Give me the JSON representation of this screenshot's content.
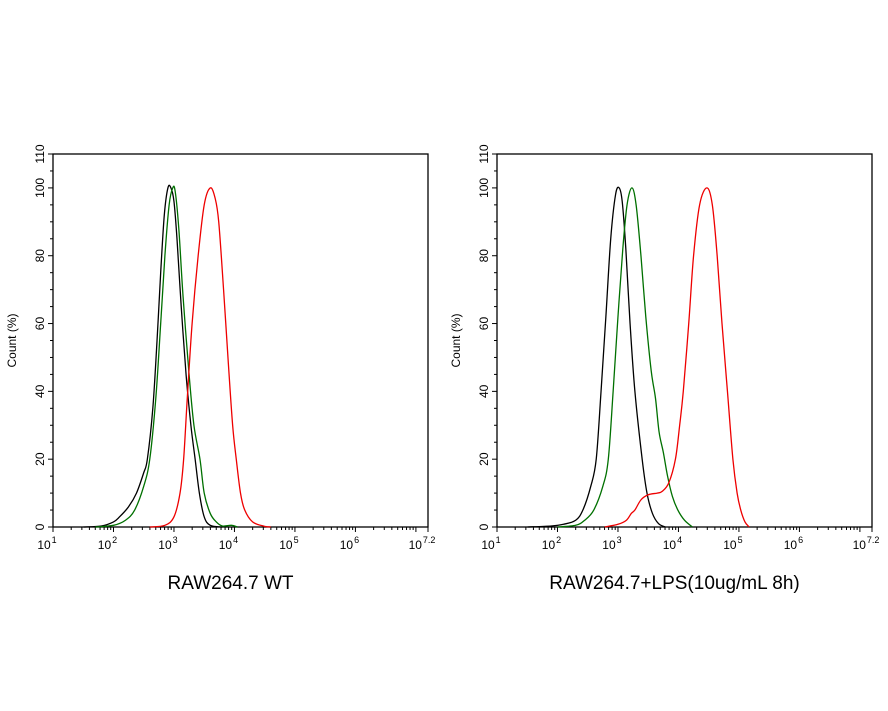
{
  "chart_data": [
    {
      "type": "line",
      "title": "RAW264.7 WT",
      "xlabel": "",
      "ylabel": "Count  (%)",
      "x_scale": "log",
      "xlim": [
        10,
        15848932
      ],
      "ylim": [
        0,
        110
      ],
      "x_tick_labels": [
        {
          "base": "10",
          "exp": "1"
        },
        {
          "base": "10",
          "exp": "2"
        },
        {
          "base": "10",
          "exp": "3"
        },
        {
          "base": "10",
          "exp": "4"
        },
        {
          "base": "10",
          "exp": "5"
        },
        {
          "base": "10",
          "exp": "6"
        },
        {
          "base": "10",
          "exp": "7.2"
        }
      ],
      "y_tick_labels": [
        "0",
        "20",
        "40",
        "60",
        "80",
        "100",
        "110"
      ],
      "grid": false,
      "series": [
        {
          "color": "#000000",
          "x": [
            32,
            63,
            100,
            126,
            178,
            240,
            316,
            363,
            447,
            525,
            603,
            692,
            794,
            891,
            1000,
            1122,
            1318,
            1585,
            1905,
            2239,
            2630,
            3162,
            3981,
            6310
          ],
          "y": [
            0,
            0.3,
            1.5,
            3,
            6,
            10,
            16,
            20,
            35,
            55,
            75,
            92,
            100,
            100,
            96,
            85,
            65,
            45,
            30,
            20,
            10,
            3,
            0.5,
            0
          ]
        },
        {
          "color": "#007000",
          "x": [
            50,
            100,
            158,
            224,
            316,
            398,
            501,
            603,
            708,
            832,
            955,
            1047,
            1202,
            1413,
            1778,
            2138,
            2692,
            3162,
            3981,
            5012,
            6310,
            8913,
            11220
          ],
          "y": [
            0,
            0.5,
            2,
            5,
            12,
            20,
            38,
            60,
            80,
            95,
            100,
            99,
            88,
            68,
            45,
            30,
            20,
            10,
            4,
            1.5,
            0.3,
            0.5,
            0
          ]
        },
        {
          "color": "#ee0000",
          "x": [
            398,
            708,
            1000,
            1259,
            1445,
            1660,
            1995,
            2512,
            3162,
            3981,
            4786,
            5495,
            6607,
            7943,
            9333,
            10715,
            12589,
            14791,
            19953,
            31623,
            39811
          ],
          "y": [
            0,
            0.5,
            3,
            10,
            20,
            38,
            60,
            80,
            95,
            100,
            97,
            90,
            70,
            48,
            30,
            20,
            10,
            5,
            1.5,
            0.2,
            0
          ]
        }
      ]
    },
    {
      "type": "line",
      "title": "RAW264.7+LPS(10ug/mL 8h)",
      "xlabel": "",
      "ylabel": "Count  (%)",
      "x_scale": "log",
      "xlim": [
        10,
        15848932
      ],
      "ylim": [
        0,
        110
      ],
      "x_tick_labels": [
        {
          "base": "10",
          "exp": "1"
        },
        {
          "base": "10",
          "exp": "2"
        },
        {
          "base": "10",
          "exp": "3"
        },
        {
          "base": "10",
          "exp": "4"
        },
        {
          "base": "10",
          "exp": "5"
        },
        {
          "base": "10",
          "exp": "6"
        },
        {
          "base": "10",
          "exp": "7.2"
        }
      ],
      "y_tick_labels": [
        "0",
        "20",
        "40",
        "60",
        "80",
        "100",
        "110"
      ],
      "grid": false,
      "series": [
        {
          "color": "#000000",
          "x": [
            32,
            79,
            126,
            200,
            263,
            355,
            437,
            525,
            631,
            759,
            912,
            1047,
            1175,
            1349,
            1585,
            1905,
            2512,
            3020,
            3715,
            4677,
            6026
          ],
          "y": [
            0,
            0.3,
            0.8,
            2,
            5,
            12,
            20,
            40,
            62,
            85,
            98,
            100,
            96,
            82,
            60,
            40,
            20,
            10,
            4,
            1,
            0
          ]
        },
        {
          "color": "#007000",
          "x": [
            100,
            200,
            282,
            398,
            562,
            692,
            832,
            1000,
            1202,
            1413,
            1698,
            1995,
            2399,
            2884,
            3548,
            4169,
            4786,
            5623,
            6607,
            7943,
            9772,
            12589,
            16982
          ],
          "y": [
            0,
            0.5,
            2,
            5,
            12,
            20,
            40,
            62,
            82,
            95,
            100,
            95,
            80,
            62,
            46,
            38,
            28,
            22,
            15,
            9,
            5,
            2,
            0
          ]
        },
        {
          "color": "#ee0000",
          "x": [
            603,
            1000,
            1380,
            1660,
            1905,
            2399,
            3162,
            4467,
            5370,
            6918,
            8913,
            10471,
            12023,
            14791,
            17783,
            22387,
            29512,
            36308,
            43652,
            52481,
            64565,
            79433,
            93325,
            107152,
            125893,
            147911
          ],
          "y": [
            0,
            0.8,
            2,
            4,
            5,
            8,
            9.5,
            10,
            10.5,
            13,
            20,
            30,
            40,
            60,
            80,
            95,
            100,
            95,
            80,
            60,
            40,
            20,
            10,
            5,
            1.5,
            0
          ]
        }
      ]
    }
  ]
}
